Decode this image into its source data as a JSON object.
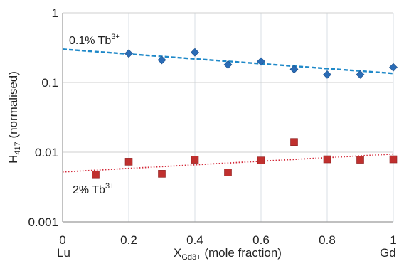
{
  "chart_data": {
    "type": "scatter",
    "xlabel": {
      "main": "X",
      "sub": "Gd3+",
      "rest": " (mole fraction)"
    },
    "ylabel": {
      "main": "H",
      "sub": "417",
      "rest": " (normalised)"
    },
    "xlim": [
      0,
      1
    ],
    "ylim": [
      0.001,
      1
    ],
    "y_scale": "log",
    "grid": "on",
    "x_ticks": [
      "0",
      "0.2",
      "0.4",
      "0.6",
      "0.8",
      "1"
    ],
    "y_ticks": [
      "0.001",
      "0.01",
      "0.1",
      "1"
    ],
    "x_end_labels": {
      "left": "Lu",
      "right": "Gd"
    },
    "series": [
      {
        "label": {
          "main": "0.1% Tb",
          "sup": "3+"
        },
        "marker": "diamond",
        "color": "#2a6cb6",
        "points": [
          {
            "x": 0.2,
            "y": 0.26
          },
          {
            "x": 0.3,
            "y": 0.21
          },
          {
            "x": 0.4,
            "y": 0.27
          },
          {
            "x": 0.5,
            "y": 0.18
          },
          {
            "x": 0.6,
            "y": 0.2
          },
          {
            "x": 0.7,
            "y": 0.155
          },
          {
            "x": 0.8,
            "y": 0.13
          },
          {
            "x": 0.9,
            "y": 0.13
          },
          {
            "x": 1.0,
            "y": 0.165
          }
        ],
        "trend": {
          "style": "dashed",
          "color": "#1e88c8",
          "x": [
            0,
            1
          ],
          "y": [
            0.3,
            0.135
          ]
        }
      },
      {
        "label": {
          "main": "2% Tb",
          "sup": "3+"
        },
        "marker": "square",
        "color": "#c0302e",
        "points": [
          {
            "x": 0.1,
            "y": 0.0048
          },
          {
            "x": 0.2,
            "y": 0.0073
          },
          {
            "x": 0.3,
            "y": 0.0049
          },
          {
            "x": 0.4,
            "y": 0.0078
          },
          {
            "x": 0.5,
            "y": 0.0051
          },
          {
            "x": 0.6,
            "y": 0.0076
          },
          {
            "x": 0.7,
            "y": 0.014
          },
          {
            "x": 0.8,
            "y": 0.0079
          },
          {
            "x": 0.9,
            "y": 0.0078
          },
          {
            "x": 1.0,
            "y": 0.0079
          }
        ],
        "trend": {
          "style": "dotted",
          "color": "#d42a3a",
          "x": [
            0,
            1
          ],
          "y": [
            0.0052,
            0.0094
          ]
        }
      }
    ]
  }
}
